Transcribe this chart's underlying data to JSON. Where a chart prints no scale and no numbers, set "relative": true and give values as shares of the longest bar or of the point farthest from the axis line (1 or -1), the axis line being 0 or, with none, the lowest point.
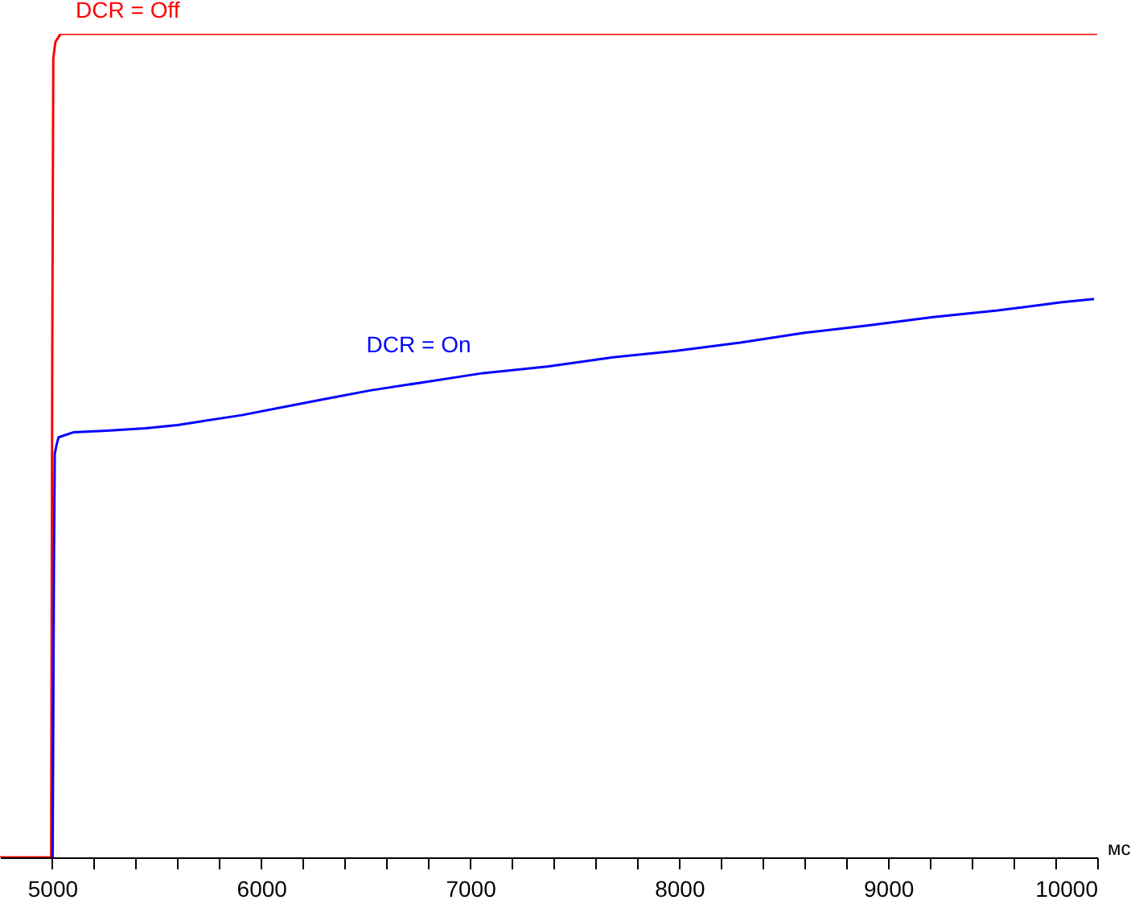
{
  "chart_data": {
    "type": "line",
    "xlabel": "мс",
    "relative": true,
    "grid": false,
    "marker": "none",
    "line_style": "solid",
    "xlim": [
      4750,
      10000
    ],
    "xticks": [
      5000,
      {
        "value": 5200,
        "label": null
      },
      {
        "value": 5400,
        "label": null
      },
      {
        "value": 5600,
        "label": null
      },
      {
        "value": 5800,
        "label": null
      },
      6000,
      {
        "value": 6200,
        "label": null
      },
      {
        "value": 6400,
        "label": null
      },
      {
        "value": 6600,
        "label": null
      },
      {
        "value": 6800,
        "label": null
      },
      7000,
      {
        "value": 7200,
        "label": null
      },
      {
        "value": 7400,
        "label": null
      },
      {
        "value": 7600,
        "label": null
      },
      {
        "value": 7800,
        "label": null
      },
      8000,
      {
        "value": 8200,
        "label": null
      },
      {
        "value": 8400,
        "label": null
      },
      {
        "value": 8600,
        "label": null
      },
      {
        "value": 8800,
        "label": null
      },
      9000,
      {
        "value": 9200,
        "label": null
      },
      {
        "value": 9400,
        "label": null
      },
      {
        "value": 9600,
        "label": null
      },
      {
        "value": 9800,
        "label": null
      },
      10000
    ],
    "series": [
      {
        "name": "DCR = Off",
        "color": "#ff0000",
        "x": [
          4750,
          4995,
          5000,
          5005,
          5015,
          5040,
          10000
        ],
        "values": [
          0,
          0,
          0.6,
          0.97,
          0.99,
          1.0,
          1.0
        ]
      },
      {
        "name": "DCR = On",
        "color": "#0000ff",
        "x": [
          5002,
          5008,
          5012,
          5020,
          5030,
          5100,
          5262,
          5446,
          5600,
          5908,
          6292,
          6523,
          6754,
          7062,
          7369,
          7677,
          7985,
          8292,
          8600,
          8908,
          9215,
          9523,
          9831,
          9985
        ],
        "values": [
          0,
          0.35,
          0.49,
          0.5,
          0.51,
          0.516,
          0.518,
          0.521,
          0.525,
          0.537,
          0.556,
          0.567,
          0.576,
          0.588,
          0.596,
          0.607,
          0.615,
          0.625,
          0.637,
          0.646,
          0.656,
          0.664,
          0.674,
          0.678
        ]
      }
    ]
  }
}
